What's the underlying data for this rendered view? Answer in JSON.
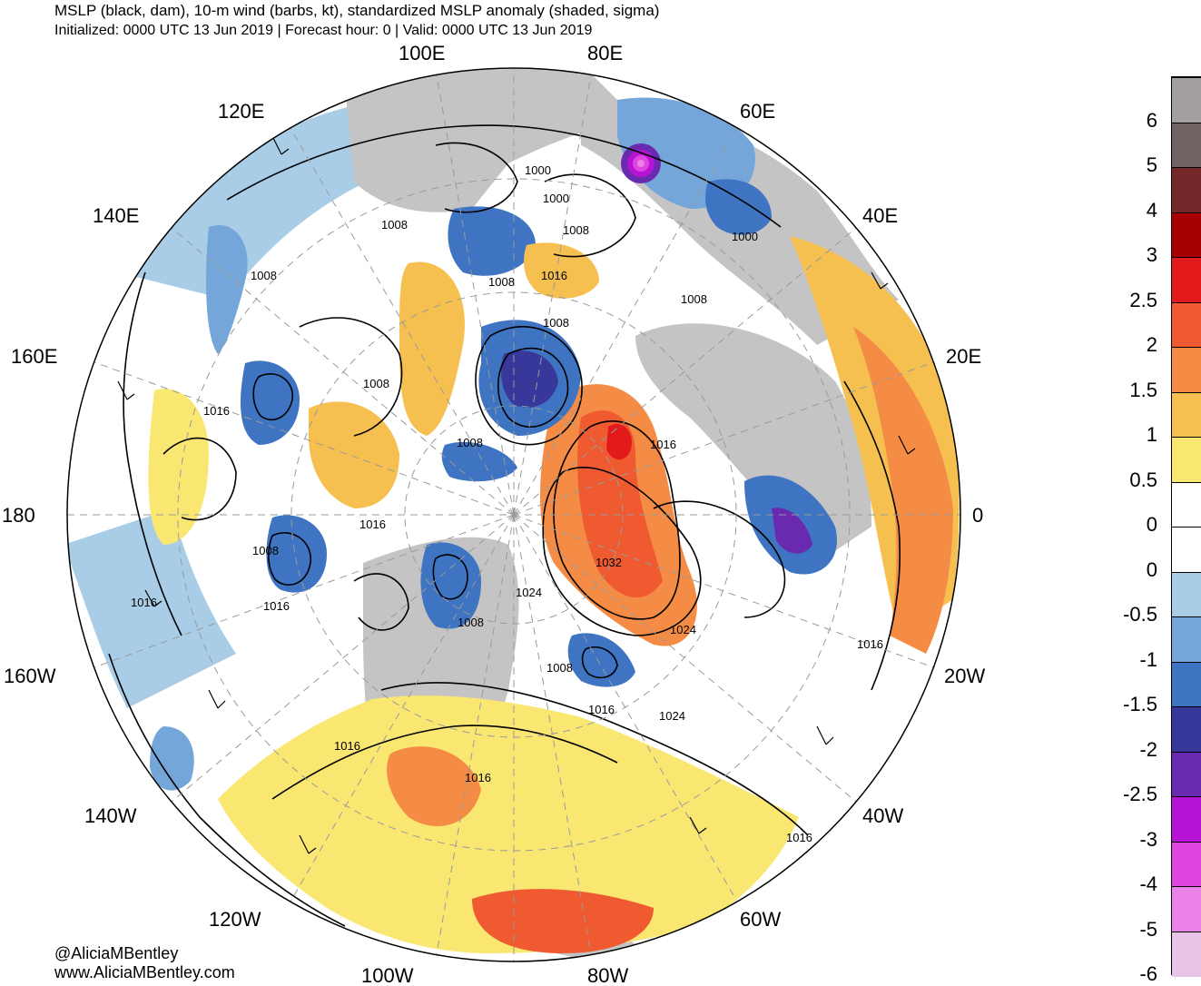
{
  "header": {
    "title": "MSLP (black, dam), 10-m wind (barbs, kt), standardized MSLP anomaly (shaded, sigma)",
    "subtitle": "Initialized: 0000 UTC 13 Jun 2019 | Forecast hour: 0 | Valid: 0000 UTC 13 Jun 2019"
  },
  "map": {
    "projection": "north-polar-stereographic",
    "longitude_labels": [
      "100E",
      "80E",
      "120E",
      "60E",
      "140E",
      "40E",
      "160E",
      "20E",
      "180",
      "0",
      "160W",
      "20W",
      "140W",
      "40W",
      "120W",
      "60W",
      "100W",
      "80W"
    ],
    "contour_labels": [
      "1000",
      "1000",
      "1008",
      "1008",
      "1008",
      "1016",
      "1000",
      "1008",
      "1008",
      "1008",
      "1008",
      "1016",
      "1008",
      "1016",
      "1016",
      "1008",
      "1032",
      "1024",
      "1024",
      "1016",
      "1008",
      "1016",
      "1008",
      "1016",
      "1024",
      "1016",
      "1016",
      "1016",
      "1016"
    ],
    "colors": {
      "land": "#c4c4c4",
      "ocean": "#ffffff",
      "contour": "#000000",
      "graticule": "#9a9a9a"
    }
  },
  "colorbar": {
    "labels": [
      "6",
      "5",
      "4",
      "3",
      "2.5",
      "2",
      "1.5",
      "1",
      "0.5",
      "0",
      "0",
      "-0.5",
      "-1",
      "-1.5",
      "-2",
      "-2.5",
      "-3",
      "-4",
      "-5",
      "-6"
    ],
    "colors": [
      "#a59e9e",
      "#6e6362",
      "#74282a",
      "#a80000",
      "#e31a1c",
      "#f05a30",
      "#f58c45",
      "#f5c050",
      "#fae772",
      "#ffffff",
      "#ffffff",
      "#a9cde6",
      "#74a6d9",
      "#3e74c2",
      "#37389a",
      "#6a2ab0",
      "#b713d4",
      "#e045e0",
      "#ea82ea",
      "#e8c3e8"
    ]
  },
  "credits": {
    "handle": "@AliciaMBentley",
    "website": "www.AliciaMBentley.com"
  }
}
